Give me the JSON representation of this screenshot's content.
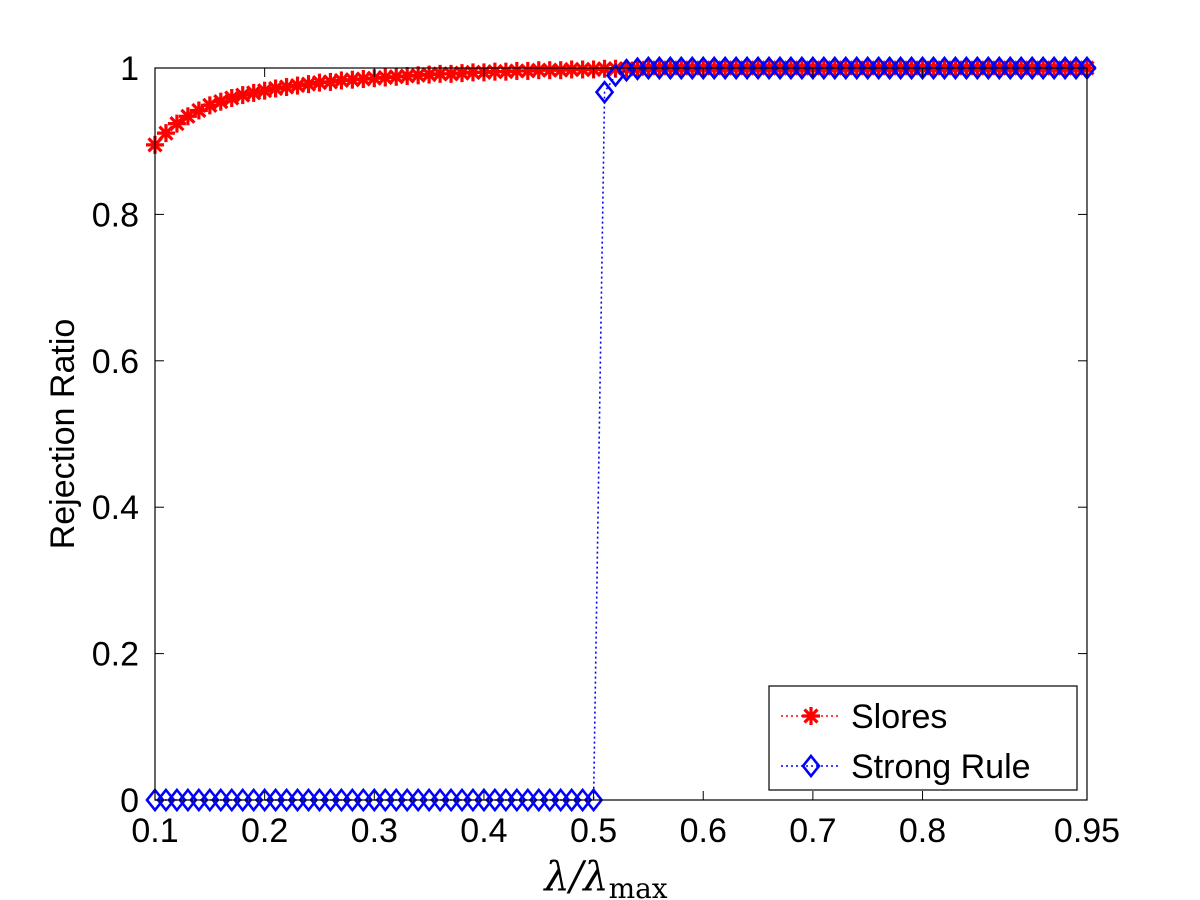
{
  "chart_data": {
    "type": "line",
    "xlabel": "λ/λmax",
    "xlabel_parts": {
      "main": "λ/λ",
      "sub": "max"
    },
    "ylabel": "Rejection Ratio",
    "xlim": [
      0.1,
      0.95
    ],
    "ylim": [
      0,
      1
    ],
    "xticks": [
      0.1,
      0.2,
      0.3,
      0.4,
      0.5,
      0.6,
      0.7,
      0.8,
      0.95
    ],
    "xtick_labels": [
      "0.1",
      "0.2",
      "0.3",
      "0.4",
      "0.5",
      "0.6",
      "0.7",
      "0.8",
      "0.95"
    ],
    "yticks": [
      0,
      0.2,
      0.4,
      0.6,
      0.8,
      1
    ],
    "ytick_labels": [
      "0",
      "0.2",
      "0.4",
      "0.6",
      "0.8",
      "1"
    ],
    "grid": false,
    "legend_position": "bottom-right",
    "series": [
      {
        "name": "Slores",
        "color": "#ff0000",
        "marker": "asterisk",
        "line_style": "dotted",
        "x": [
          0.1,
          0.11,
          0.12,
          0.13,
          0.14,
          0.15,
          0.16,
          0.17,
          0.18,
          0.19,
          0.2,
          0.21,
          0.22,
          0.23,
          0.24,
          0.25,
          0.26,
          0.27,
          0.28,
          0.29,
          0.3,
          0.31,
          0.32,
          0.33,
          0.34,
          0.35,
          0.36,
          0.37,
          0.38,
          0.39,
          0.4,
          0.41,
          0.42,
          0.43,
          0.44,
          0.45,
          0.46,
          0.47,
          0.48,
          0.49,
          0.5,
          0.51,
          0.52,
          0.53,
          0.54,
          0.55,
          0.56,
          0.57,
          0.58,
          0.59,
          0.6,
          0.61,
          0.62,
          0.63,
          0.64,
          0.65,
          0.66,
          0.67,
          0.68,
          0.69,
          0.7,
          0.71,
          0.72,
          0.73,
          0.74,
          0.75,
          0.76,
          0.77,
          0.78,
          0.79,
          0.8,
          0.81,
          0.82,
          0.83,
          0.84,
          0.85,
          0.86,
          0.87,
          0.88,
          0.89,
          0.9,
          0.91,
          0.92,
          0.93,
          0.94,
          0.95
        ],
        "y": [
          0.895,
          0.911,
          0.924,
          0.934,
          0.942,
          0.949,
          0.954,
          0.959,
          0.963,
          0.966,
          0.969,
          0.972,
          0.974,
          0.976,
          0.978,
          0.98,
          0.981,
          0.983,
          0.984,
          0.985,
          0.986,
          0.987,
          0.988,
          0.989,
          0.99,
          0.991,
          0.992,
          0.992,
          0.993,
          0.994,
          0.994,
          0.995,
          0.995,
          0.996,
          0.996,
          0.997,
          0.997,
          0.997,
          0.998,
          0.998,
          0.998,
          0.999,
          0.999,
          0.999,
          0.999,
          1,
          1,
          1,
          1,
          1,
          1,
          1,
          1,
          1,
          1,
          1,
          1,
          1,
          1,
          1,
          1,
          1,
          1,
          1,
          1,
          1,
          1,
          1,
          1,
          1,
          1,
          1,
          1,
          1,
          1,
          1,
          1,
          1,
          1,
          1,
          1,
          1,
          1,
          1,
          1,
          1
        ]
      },
      {
        "name": "Strong Rule",
        "color": "#0000ff",
        "marker": "diamond",
        "line_style": "dotted",
        "x": [
          0.1,
          0.11,
          0.12,
          0.13,
          0.14,
          0.15,
          0.16,
          0.17,
          0.18,
          0.19,
          0.2,
          0.21,
          0.22,
          0.23,
          0.24,
          0.25,
          0.26,
          0.27,
          0.28,
          0.29,
          0.3,
          0.31,
          0.32,
          0.33,
          0.34,
          0.35,
          0.36,
          0.37,
          0.38,
          0.39,
          0.4,
          0.41,
          0.42,
          0.43,
          0.44,
          0.45,
          0.46,
          0.47,
          0.48,
          0.49,
          0.5,
          0.51,
          0.52,
          0.53,
          0.54,
          0.55,
          0.56,
          0.57,
          0.58,
          0.59,
          0.6,
          0.61,
          0.62,
          0.63,
          0.64,
          0.65,
          0.66,
          0.67,
          0.68,
          0.69,
          0.7,
          0.71,
          0.72,
          0.73,
          0.74,
          0.75,
          0.76,
          0.77,
          0.78,
          0.79,
          0.8,
          0.81,
          0.82,
          0.83,
          0.84,
          0.85,
          0.86,
          0.87,
          0.88,
          0.89,
          0.9,
          0.91,
          0.92,
          0.93,
          0.94,
          0.95
        ],
        "y": [
          0,
          0,
          0,
          0,
          0,
          0,
          0,
          0,
          0,
          0,
          0,
          0,
          0,
          0,
          0,
          0,
          0,
          0,
          0,
          0,
          0,
          0,
          0,
          0,
          0,
          0,
          0,
          0,
          0,
          0,
          0,
          0,
          0,
          0,
          0,
          0,
          0,
          0,
          0,
          0,
          0,
          0.967,
          0.99,
          0.997,
          0.999,
          1,
          1,
          1,
          1,
          1,
          1,
          1,
          1,
          1,
          1,
          1,
          1,
          1,
          1,
          1,
          1,
          1,
          1,
          1,
          1,
          1,
          1,
          1,
          1,
          1,
          1,
          1,
          1,
          1,
          1,
          1,
          1,
          1,
          1,
          1,
          1,
          1,
          1,
          1,
          1,
          1
        ]
      }
    ]
  }
}
